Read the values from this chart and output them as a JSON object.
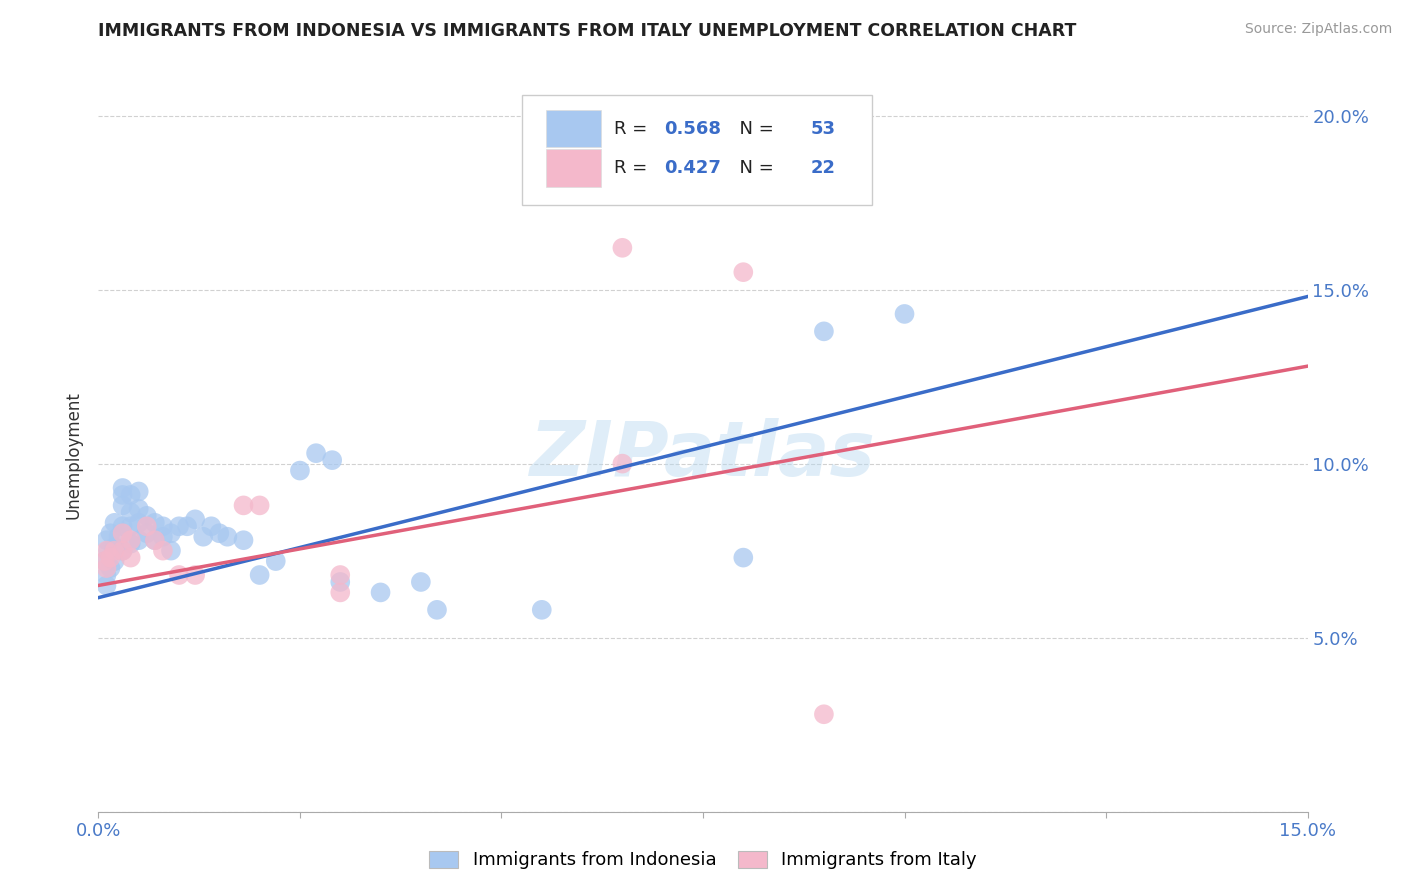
{
  "title": "IMMIGRANTS FROM INDONESIA VS IMMIGRANTS FROM ITALY UNEMPLOYMENT CORRELATION CHART",
  "source": "Source: ZipAtlas.com",
  "ylabel": "Unemployment",
  "xlim": [
    0.0,
    0.15
  ],
  "ylim": [
    0.0,
    0.205
  ],
  "xticks": [
    0.0,
    0.025,
    0.05,
    0.075,
    0.1,
    0.125,
    0.15
  ],
  "xticklabels": [
    "0.0%",
    "",
    "",
    "",
    "",
    "",
    "15.0%"
  ],
  "yticks": [
    0.0,
    0.05,
    0.1,
    0.15,
    0.2
  ],
  "yticklabels": [
    "",
    "5.0%",
    "10.0%",
    "15.0%",
    "20.0%"
  ],
  "indonesia_color": "#a8c8f0",
  "italy_color": "#f4b8cb",
  "indonesia_line_color": "#3a6cc8",
  "italy_line_color": "#e0607a",
  "indonesia_R": 0.568,
  "indonesia_N": 53,
  "italy_R": 0.427,
  "italy_N": 22,
  "indonesia_scatter": [
    [
      0.0008,
      0.072
    ],
    [
      0.001,
      0.068
    ],
    [
      0.001,
      0.065
    ],
    [
      0.001,
      0.078
    ],
    [
      0.0012,
      0.075
    ],
    [
      0.0015,
      0.07
    ],
    [
      0.0015,
      0.08
    ],
    [
      0.002,
      0.072
    ],
    [
      0.002,
      0.076
    ],
    [
      0.002,
      0.083
    ],
    [
      0.0025,
      0.079
    ],
    [
      0.003,
      0.075
    ],
    [
      0.003,
      0.082
    ],
    [
      0.003,
      0.088
    ],
    [
      0.003,
      0.091
    ],
    [
      0.003,
      0.093
    ],
    [
      0.004,
      0.077
    ],
    [
      0.004,
      0.082
    ],
    [
      0.004,
      0.086
    ],
    [
      0.004,
      0.091
    ],
    [
      0.005,
      0.078
    ],
    [
      0.005,
      0.083
    ],
    [
      0.005,
      0.087
    ],
    [
      0.005,
      0.092
    ],
    [
      0.006,
      0.08
    ],
    [
      0.006,
      0.085
    ],
    [
      0.007,
      0.078
    ],
    [
      0.007,
      0.083
    ],
    [
      0.008,
      0.079
    ],
    [
      0.008,
      0.082
    ],
    [
      0.009,
      0.08
    ],
    [
      0.009,
      0.075
    ],
    [
      0.01,
      0.082
    ],
    [
      0.011,
      0.082
    ],
    [
      0.012,
      0.084
    ],
    [
      0.013,
      0.079
    ],
    [
      0.014,
      0.082
    ],
    [
      0.015,
      0.08
    ],
    [
      0.016,
      0.079
    ],
    [
      0.018,
      0.078
    ],
    [
      0.02,
      0.068
    ],
    [
      0.022,
      0.072
    ],
    [
      0.025,
      0.098
    ],
    [
      0.027,
      0.103
    ],
    [
      0.029,
      0.101
    ],
    [
      0.03,
      0.066
    ],
    [
      0.035,
      0.063
    ],
    [
      0.04,
      0.066
    ],
    [
      0.042,
      0.058
    ],
    [
      0.055,
      0.058
    ],
    [
      0.08,
      0.073
    ],
    [
      0.09,
      0.138
    ],
    [
      0.1,
      0.143
    ]
  ],
  "italy_scatter": [
    [
      0.0008,
      0.072
    ],
    [
      0.001,
      0.07
    ],
    [
      0.001,
      0.075
    ],
    [
      0.0015,
      0.073
    ],
    [
      0.002,
      0.075
    ],
    [
      0.003,
      0.075
    ],
    [
      0.003,
      0.08
    ],
    [
      0.004,
      0.073
    ],
    [
      0.004,
      0.078
    ],
    [
      0.006,
      0.082
    ],
    [
      0.007,
      0.078
    ],
    [
      0.008,
      0.075
    ],
    [
      0.01,
      0.068
    ],
    [
      0.012,
      0.068
    ],
    [
      0.018,
      0.088
    ],
    [
      0.02,
      0.088
    ],
    [
      0.03,
      0.063
    ],
    [
      0.03,
      0.068
    ],
    [
      0.065,
      0.1
    ],
    [
      0.065,
      0.162
    ],
    [
      0.08,
      0.155
    ],
    [
      0.09,
      0.028
    ]
  ],
  "indonesia_line": [
    0.0,
    0.0615,
    0.15,
    0.148
  ],
  "italy_line": [
    0.0,
    0.065,
    0.15,
    0.128
  ],
  "watermark": "ZIPatlas",
  "background_color": "#ffffff",
  "grid_color": "#cccccc"
}
